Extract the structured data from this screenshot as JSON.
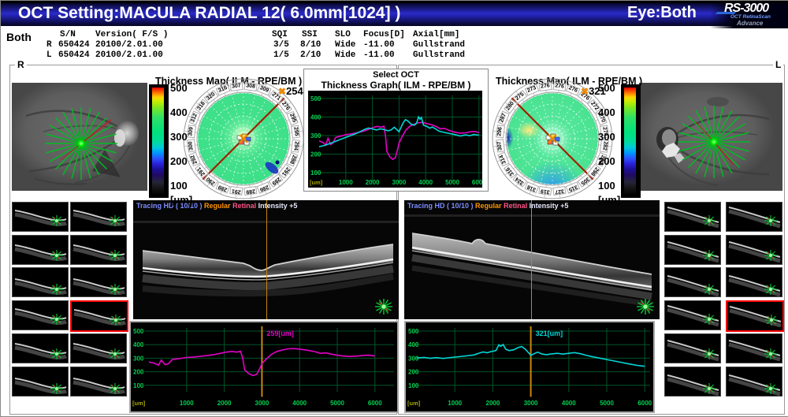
{
  "header": {
    "title": "OCT Setting:MACULA RADIAL 12( 6.0mm[1024] )",
    "eye_label": "Eye:Both",
    "logo": {
      "name": "RS-3000",
      "sub": "OCT RetinaScan",
      "sub2": "Advance"
    }
  },
  "scan_info": {
    "mode": "Both",
    "columns": {
      "sn": "S/N",
      "version": "Version( F/S )",
      "sqi": "SQI",
      "ssi": "SSI",
      "slo": "SLO",
      "focus": "Focus[D]",
      "axial": "Axial[mm]"
    },
    "rows": [
      {
        "eye": "R",
        "sn": "650424",
        "version": "20100/2.01.00",
        "sqi": "3/5",
        "ssi": "8/10",
        "slo": "Wide",
        "focus": "-11.00",
        "axial": "Gullstrand"
      },
      {
        "eye": "L",
        "sn": "650424",
        "version": "20100/2.01.00",
        "sqi": "1/5",
        "ssi": "2/10",
        "slo": "Wide",
        "focus": "-11.00",
        "axial": "Gullstrand"
      }
    ]
  },
  "colorbar": {
    "labels": [
      "500",
      "400",
      "300",
      "200",
      "100"
    ],
    "unit": "[um]"
  },
  "oct_header": {
    "tracing": "Tracing HD ( 10/10 )",
    "mode": "Regular",
    "target": "Retinal",
    "intensity": "Intensity +5"
  },
  "select_oct": {
    "title": "Select OCT",
    "graph_title": "Thickness Graph( ILM - RPE/BM )"
  },
  "right_eye": {
    "frame_label": "R",
    "map": {
      "title": "Thickness Map( ILM - RPE/BM )",
      "marker_symbol": "✖",
      "center_value": "254",
      "ring_values": [
        309,
        312,
        318,
        320,
        316,
        307,
        308,
        309,
        271,
        276,
        295,
        295,
        294,
        288,
        291,
        289,
        286,
        289,
        291,
        289,
        290,
        291,
        292,
        300
      ]
    },
    "thumbnails": {
      "count": 12,
      "selected_index": 7
    }
  },
  "left_eye": {
    "frame_label": "L",
    "map": {
      "title": "Thickness Map( ILM - RPE/BM )",
      "marker_symbol": "✖",
      "center_value": "321",
      "ring_values": [
        296,
        287,
        280,
        275,
        273,
        276,
        276,
        276,
        276,
        272,
        270,
        274,
        282,
        292,
        298,
        305,
        315,
        327,
        319,
        318,
        324,
        316,
        314,
        307
      ]
    },
    "thumbnails": {
      "count": 12,
      "selected_index": 7
    }
  },
  "chart_data": [
    {
      "id": "thickness_graph_both",
      "type": "line",
      "title": "Thickness Graph( ILM - RPE/BM )",
      "x_unit": "[um]",
      "xlim": [
        0,
        6000
      ],
      "ylim": [
        50,
        520
      ],
      "grid": true,
      "y_ticks": [
        500,
        400,
        300,
        200,
        100
      ],
      "x_ticks": [
        1000,
        2000,
        3000,
        4000,
        5000,
        6000
      ],
      "series": [
        {
          "name": "R",
          "color": "#e400c8",
          "curve": "R",
          "mirrored": false
        },
        {
          "name": "L",
          "color": "#00d8d8",
          "curve": "L",
          "mirrored": true
        }
      ]
    },
    {
      "id": "thickness_profile_R",
      "type": "line",
      "x_unit": "[um]",
      "xlim": [
        0,
        6000
      ],
      "ylim": [
        50,
        520
      ],
      "y_ticks": [
        500,
        400,
        300,
        200,
        100
      ],
      "x_ticks": [
        1000,
        2000,
        3000,
        4000,
        5000,
        6000
      ],
      "cursor": {
        "x": 3000,
        "label": "259[um]",
        "color": "#c8860a"
      },
      "series": [
        {
          "name": "R",
          "color": "#e400c8",
          "curve": "R",
          "mirrored": false
        }
      ]
    },
    {
      "id": "thickness_profile_L",
      "type": "line",
      "x_unit": "[um]",
      "xlim": [
        0,
        6000
      ],
      "ylim": [
        50,
        520
      ],
      "y_ticks": [
        500,
        400,
        300,
        200,
        100
      ],
      "x_ticks": [
        1000,
        2000,
        3000,
        4000,
        5000,
        6000
      ],
      "cursor": {
        "x": 3000,
        "label": "321[um]",
        "color": "#c8860a"
      },
      "series": [
        {
          "name": "L",
          "color": "#00d8d8",
          "curve": "L",
          "mirrored": false
        }
      ]
    }
  ],
  "curves": {
    "R": [
      [
        0,
        272
      ],
      [
        150,
        262
      ],
      [
        250,
        248
      ],
      [
        330,
        286
      ],
      [
        430,
        252
      ],
      [
        520,
        260
      ],
      [
        620,
        290
      ],
      [
        800,
        297
      ],
      [
        1000,
        305
      ],
      [
        1200,
        309
      ],
      [
        1450,
        316
      ],
      [
        1700,
        325
      ],
      [
        1900,
        336
      ],
      [
        2050,
        345
      ],
      [
        2200,
        350
      ],
      [
        2330,
        345
      ],
      [
        2430,
        351
      ],
      [
        2490,
        300
      ],
      [
        2540,
        215
      ],
      [
        2650,
        186
      ],
      [
        2760,
        172
      ],
      [
        2860,
        180
      ],
      [
        2950,
        228
      ],
      [
        3000,
        259
      ],
      [
        3100,
        290
      ],
      [
        3250,
        328
      ],
      [
        3400,
        350
      ],
      [
        3550,
        361
      ],
      [
        3700,
        369
      ],
      [
        3850,
        371
      ],
      [
        4000,
        367
      ],
      [
        4200,
        359
      ],
      [
        4400,
        349
      ],
      [
        4550,
        336
      ],
      [
        4700,
        339
      ],
      [
        4900,
        327
      ],
      [
        5100,
        318
      ],
      [
        5300,
        313
      ],
      [
        5500,
        315
      ],
      [
        5700,
        321
      ],
      [
        5850,
        322
      ],
      [
        6000,
        316
      ]
    ],
    "L": [
      [
        0,
        302
      ],
      [
        200,
        306
      ],
      [
        350,
        299
      ],
      [
        500,
        304
      ],
      [
        700,
        298
      ],
      [
        900,
        305
      ],
      [
        1100,
        311
      ],
      [
        1300,
        317
      ],
      [
        1500,
        324
      ],
      [
        1650,
        338
      ],
      [
        1750,
        346
      ],
      [
        1850,
        340
      ],
      [
        1950,
        349
      ],
      [
        2080,
        356
      ],
      [
        2160,
        398
      ],
      [
        2210,
        388
      ],
      [
        2270,
        401
      ],
      [
        2340,
        366
      ],
      [
        2430,
        356
      ],
      [
        2550,
        362
      ],
      [
        2680,
        380
      ],
      [
        2760,
        386
      ],
      [
        2850,
        368
      ],
      [
        2950,
        337
      ],
      [
        3000,
        321
      ],
      [
        3080,
        332
      ],
      [
        3180,
        345
      ],
      [
        3300,
        330
      ],
      [
        3420,
        326
      ],
      [
        3550,
        332
      ],
      [
        3700,
        336
      ],
      [
        3850,
        330
      ],
      [
        4000,
        336
      ],
      [
        4150,
        341
      ],
      [
        4300,
        333
      ],
      [
        4450,
        322
      ],
      [
        4600,
        312
      ],
      [
        4800,
        301
      ],
      [
        5000,
        290
      ],
      [
        5200,
        279
      ],
      [
        5400,
        268
      ],
      [
        5600,
        257
      ],
      [
        5800,
        247
      ],
      [
        6000,
        240
      ]
    ]
  },
  "colors": {
    "grid": "#00552a",
    "tick": "#00d050",
    "unit": "#a8a800",
    "cursor": "#c8860a",
    "scan_green": "#00bb22",
    "select_red": "#ff0000"
  }
}
